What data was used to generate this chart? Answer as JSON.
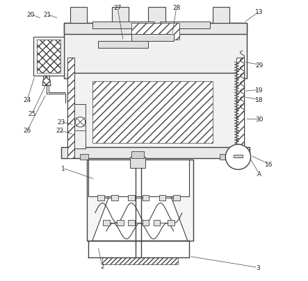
{
  "bg_color": "#ffffff",
  "line_color": "#404040",
  "label_color": "#222222",
  "line_width": 0.8
}
